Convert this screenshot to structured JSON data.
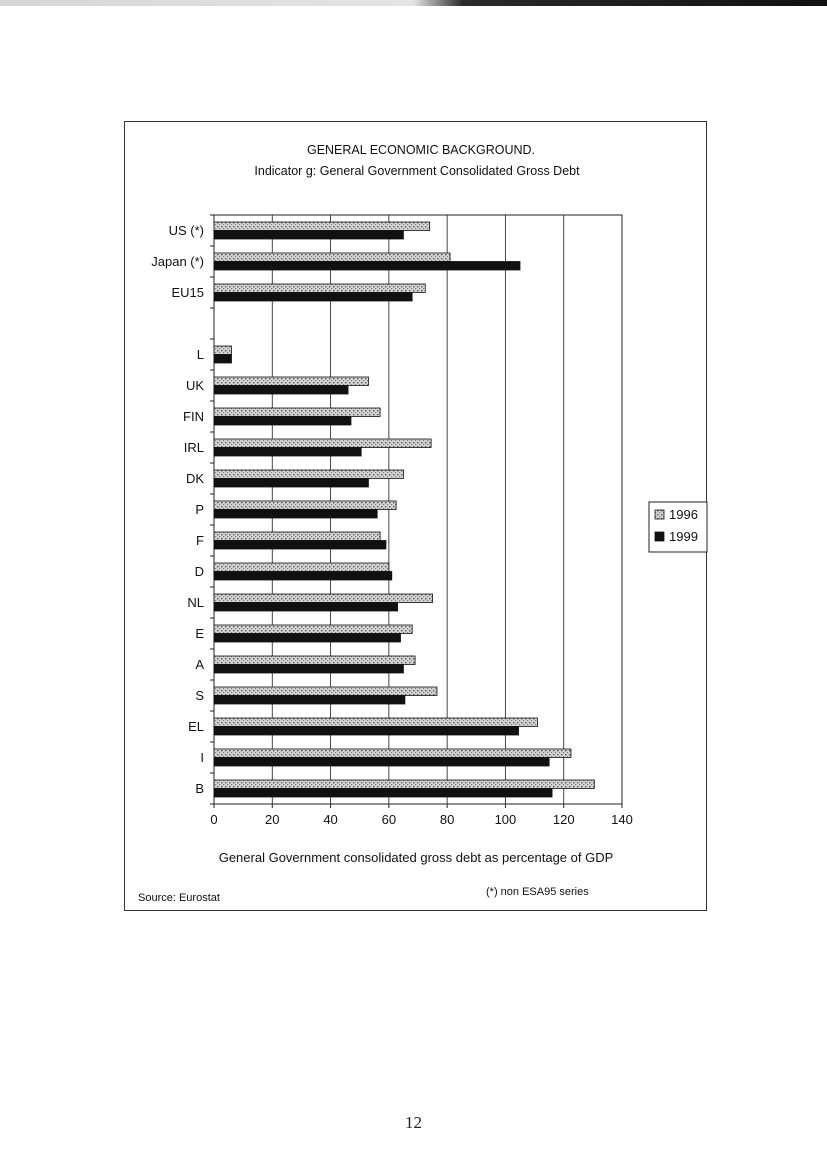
{
  "chart_data": {
    "type": "bar",
    "orientation": "horizontal",
    "title": "GENERAL ECONOMIC BACKGROUND.",
    "subtitle": "Indicator g: General Government Consolidated Gross Debt",
    "xlabel": "General Government consolidated gross debt as percentage of GDP",
    "ylabel": "",
    "xlim": [
      0,
      140
    ],
    "xticks": [
      0,
      20,
      40,
      60,
      80,
      100,
      120,
      140
    ],
    "grid": "vertical",
    "legend_position": "right",
    "categories": [
      "US (*)",
      "Japan (*)",
      "EU15",
      "",
      "L",
      "UK",
      "FIN",
      "IRL",
      "DK",
      "P",
      "F",
      "D",
      "NL",
      "E",
      "A",
      "S",
      "EL",
      "I",
      "B"
    ],
    "series": [
      {
        "name": "1996",
        "color": "#c8c8c8",
        "values": [
          74,
          81,
          72.5,
          null,
          6,
          53,
          57,
          74.5,
          65,
          62.5,
          57,
          60,
          75,
          68,
          69,
          76.5,
          111,
          122.5,
          130.5
        ]
      },
      {
        "name": "1999",
        "color": "#111111",
        "values": [
          65,
          105,
          68,
          null,
          6,
          46,
          47,
          50.5,
          53,
          56,
          59,
          61,
          63,
          64,
          65,
          65.5,
          104.5,
          115,
          116
        ]
      }
    ],
    "source_note": "Source: Eurostat",
    "footnote": "(*) non ESA95 series"
  },
  "page": {
    "number": "12"
  }
}
